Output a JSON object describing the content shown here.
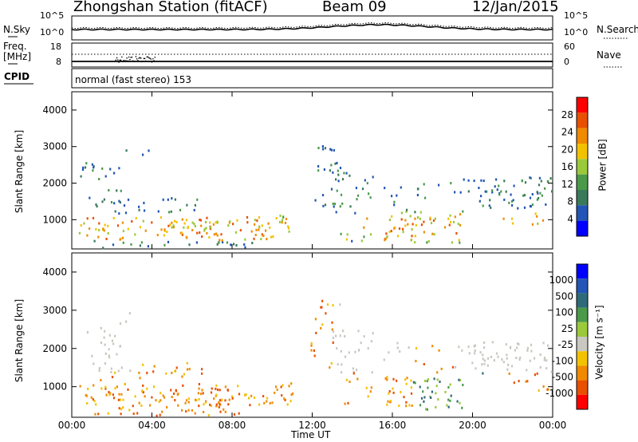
{
  "header": {
    "station": "Zhongshan Station (fitACF)",
    "beam": "Beam 09",
    "date": "12/Jan/2015"
  },
  "panels": {
    "nsky_label": "N.Sky",
    "nsearch_label": "N.Search",
    "noise_ticks": [
      "10^5",
      "10^0"
    ],
    "freq_label": "Freq.",
    "freq_unit": "[MHz]",
    "freq_ticks": [
      "18",
      "8"
    ],
    "nave_label": "Nave",
    "nave_ticks": [
      "60",
      "0"
    ],
    "cpid_label": "CPID",
    "cpid_text": "normal (fast stereo) 153"
  },
  "colors": {
    "power": [
      "#0000ff",
      "#2255b5",
      "#3a7a5a",
      "#4a9a4a",
      "#9ac93a",
      "#f2c200",
      "#f08a00",
      "#e85000",
      "#ff0000"
    ],
    "velocity": [
      "#ff0000",
      "#e85000",
      "#f08a00",
      "#f2c200",
      "#c8c8c0",
      "#9ac93a",
      "#4a9a4a",
      "#2f6a7a",
      "#2255b5",
      "#0000ff"
    ]
  },
  "chart_data": [
    {
      "type": "heatmap",
      "name": "power",
      "ylabel": "Slant Range [km]",
      "yticks": [
        1000,
        2000,
        3000,
        4000
      ],
      "ylim": [
        200,
        4500
      ],
      "xticks": [
        "00:00",
        "04:00",
        "08:00",
        "12:00",
        "16:00",
        "20:00",
        "00:00"
      ],
      "xlim": [
        0,
        24
      ],
      "colorbar_label": "Power [dB]",
      "colorbar_ticks": [
        "28",
        "24",
        "20",
        "16",
        "12",
        "8",
        "4"
      ],
      "clim": [
        0,
        30
      ]
    },
    {
      "type": "heatmap",
      "name": "velocity",
      "ylabel": "Slant Range [km]",
      "yticks": [
        1000,
        2000,
        3000,
        4000
      ],
      "ylim": [
        200,
        4500
      ],
      "xticks": [
        "00:00",
        "04:00",
        "08:00",
        "12:00",
        "16:00",
        "20:00",
        "00:00"
      ],
      "xlim": [
        0,
        24
      ],
      "xlabel": "Time UT",
      "colorbar_label": "Velocity [m s⁻¹]",
      "colorbar_ticks": [
        "1000",
        "500",
        "100",
        "25",
        "-25",
        "-100",
        "-500",
        "-1000"
      ],
      "clim": [
        -1000,
        1000
      ]
    }
  ]
}
